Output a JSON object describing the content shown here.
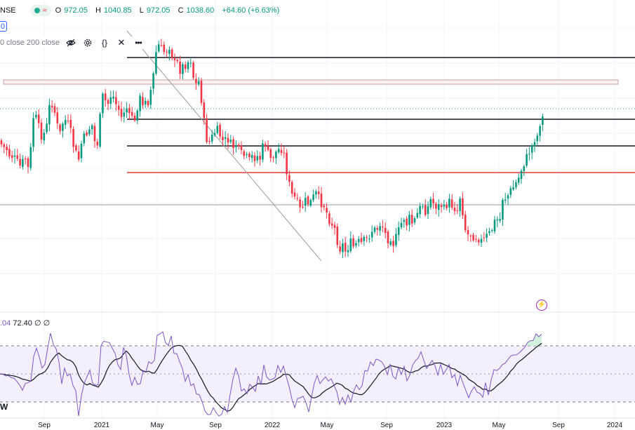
{
  "header": {
    "symbol": "NSE",
    "status_icon": "market-status-icon",
    "ohlc": [
      {
        "key": "O",
        "value": "972.05"
      },
      {
        "key": "H",
        "value": "1040.85"
      },
      {
        "key": "L",
        "value": "972.05"
      },
      {
        "key": "C",
        "value": "1038.60"
      }
    ],
    "change": "+64.60 (+6.63%)"
  },
  "left_box_value": "0",
  "indicator_legend": {
    "label": "0 close 200 close",
    "icons": [
      "eye-off-icon",
      "settings-icon",
      "source-code-icon",
      "remove-icon",
      "more-icon"
    ]
  },
  "rsi_legend": {
    "partial": ".04",
    "value": "72.40",
    "ext1": "∅",
    "ext2": "∅"
  },
  "interval_label": "W",
  "x_axis_labels": [
    "Sep",
    "2021",
    "May",
    "Sep",
    "2022",
    "May",
    "Sep",
    "2023",
    "May",
    "Sep",
    "2024"
  ],
  "colors": {
    "up": "#089981",
    "down": "#f23645",
    "rsi": "#7e57c2",
    "rsi_ma": "#131722",
    "support_red": "#e53935",
    "trendline": "#9e9e9e",
    "zone_border": "#c8a0a0",
    "zone_fill": "#fdf2f2"
  },
  "chart_data": {
    "type": "candlestick",
    "timeframe": "W",
    "price_close_points": [
      [
        0,
        200
      ],
      [
        4,
        212
      ],
      [
        8,
        208
      ],
      [
        12,
        220
      ],
      [
        16,
        222
      ],
      [
        20,
        225
      ],
      [
        24,
        230
      ],
      [
        28,
        238
      ],
      [
        32,
        232
      ],
      [
        36,
        225
      ],
      [
        40,
        240
      ],
      [
        44,
        212
      ],
      [
        48,
        162
      ],
      [
        52,
        170
      ],
      [
        56,
        185
      ],
      [
        60,
        195
      ],
      [
        64,
        188
      ],
      [
        68,
        175
      ],
      [
        72,
        138
      ],
      [
        76,
        155
      ],
      [
        80,
        165
      ],
      [
        84,
        198
      ],
      [
        88,
        178
      ],
      [
        92,
        170
      ],
      [
        96,
        175
      ],
      [
        100,
        185
      ],
      [
        104,
        205
      ],
      [
        108,
        218
      ],
      [
        112,
        228
      ],
      [
        116,
        205
      ],
      [
        120,
        196
      ],
      [
        124,
        188
      ],
      [
        128,
        182
      ],
      [
        132,
        178
      ],
      [
        136,
        210
      ],
      [
        140,
        202
      ],
      [
        144,
        150
      ],
      [
        148,
        130
      ],
      [
        152,
        155
      ],
      [
        156,
        140
      ],
      [
        160,
        132
      ],
      [
        164,
        148
      ],
      [
        168,
        150
      ],
      [
        172,
        170
      ],
      [
        176,
        160
      ],
      [
        180,
        152
      ],
      [
        184,
        168
      ],
      [
        188,
        162
      ],
      [
        192,
        176
      ],
      [
        196,
        150
      ],
      [
        200,
        140
      ],
      [
        204,
        155
      ],
      [
        208,
        135
      ],
      [
        212,
        148
      ],
      [
        216,
        120
      ],
      [
        220,
        100
      ],
      [
        224,
        58
      ],
      [
        228,
        70
      ],
      [
        232,
        70
      ],
      [
        236,
        78
      ],
      [
        240,
        62
      ],
      [
        244,
        72
      ],
      [
        248,
        92
      ],
      [
        252,
        88
      ],
      [
        256,
        100
      ],
      [
        260,
        95
      ],
      [
        264,
        92
      ],
      [
        268,
        88
      ],
      [
        272,
        85
      ],
      [
        276,
        112
      ],
      [
        280,
        122
      ],
      [
        284,
        115
      ],
      [
        288,
        150
      ],
      [
        292,
        185
      ],
      [
        296,
        205
      ],
      [
        300,
        200
      ],
      [
        304,
        192
      ],
      [
        308,
        185
      ],
      [
        312,
        188
      ],
      [
        316,
        200
      ],
      [
        320,
        202
      ],
      [
        324,
        196
      ],
      [
        328,
        205
      ],
      [
        332,
        210
      ],
      [
        336,
        205
      ],
      [
        340,
        215
      ],
      [
        344,
        220
      ],
      [
        348,
        222
      ],
      [
        352,
        226
      ],
      [
        356,
        230
      ],
      [
        360,
        222
      ],
      [
        364,
        225
      ],
      [
        368,
        222
      ],
      [
        372,
        228
      ],
      [
        376,
        198
      ],
      [
        380,
        210
      ],
      [
        384,
        228
      ],
      [
        388,
        225
      ],
      [
        392,
        218
      ],
      [
        396,
        215
      ],
      [
        400,
        210
      ],
      [
        404,
        216
      ],
      [
        408,
        240
      ],
      [
        412,
        262
      ],
      [
        416,
        278
      ],
      [
        420,
        282
      ],
      [
        424,
        290
      ],
      [
        428,
        300
      ],
      [
        432,
        292
      ],
      [
        436,
        286
      ],
      [
        440,
        290
      ],
      [
        444,
        287
      ],
      [
        448,
        278
      ],
      [
        452,
        275
      ],
      [
        456,
        290
      ],
      [
        460,
        288
      ],
      [
        464,
        298
      ],
      [
        468,
        310
      ],
      [
        472,
        318
      ],
      [
        476,
        322
      ],
      [
        480,
        340
      ],
      [
        484,
        355
      ],
      [
        488,
        348
      ],
      [
        492,
        358
      ],
      [
        496,
        352
      ],
      [
        500,
        346
      ],
      [
        504,
        352
      ],
      [
        508,
        348
      ],
      [
        512,
        345
      ],
      [
        516,
        348
      ],
      [
        520,
        342
      ],
      [
        524,
        340
      ],
      [
        528,
        332
      ],
      [
        532,
        326
      ],
      [
        536,
        330
      ],
      [
        540,
        320
      ],
      [
        544,
        318
      ],
      [
        548,
        330
      ],
      [
        552,
        342
      ],
      [
        556,
        335
      ],
      [
        560,
        348
      ],
      [
        564,
        340
      ],
      [
        568,
        330
      ],
      [
        572,
        318
      ],
      [
        576,
        310
      ],
      [
        580,
        320
      ],
      [
        584,
        310
      ],
      [
        588,
        320
      ],
      [
        592,
        312
      ],
      [
        596,
        302
      ],
      [
        600,
        295
      ],
      [
        604,
        290
      ],
      [
        608,
        308
      ],
      [
        612,
        282
      ],
      [
        616,
        288
      ],
      [
        620,
        292
      ],
      [
        624,
        296
      ],
      [
        628,
        290
      ],
      [
        632,
        300
      ],
      [
        636,
        292
      ],
      [
        640,
        288
      ],
      [
        644,
        292
      ],
      [
        648,
        296
      ],
      [
        652,
        300
      ],
      [
        656,
        278
      ],
      [
        660,
        305
      ],
      [
        664,
        332
      ],
      [
        668,
        335
      ],
      [
        672,
        332
      ],
      [
        676,
        338
      ],
      [
        680,
        336
      ],
      [
        684,
        342
      ],
      [
        688,
        345
      ],
      [
        692,
        338
      ],
      [
        696,
        335
      ],
      [
        700,
        330
      ],
      [
        704,
        318
      ],
      [
        708,
        312
      ],
      [
        712,
        318
      ],
      [
        716,
        282
      ],
      [
        720,
        282
      ],
      [
        724,
        278
      ],
      [
        728,
        272
      ],
      [
        732,
        266
      ],
      [
        736,
        260
      ],
      [
        740,
        252
      ],
      [
        744,
        238
      ],
      [
        748,
        230
      ],
      [
        752,
        222
      ],
      [
        756,
        212
      ],
      [
        760,
        205
      ],
      [
        764,
        200
      ],
      [
        768,
        185
      ],
      [
        772,
        172
      ],
      [
        776,
        155
      ]
    ],
    "horizontal_levels": [
      {
        "name": "resistance-1",
        "price_y": 82,
        "color": "#131722"
      },
      {
        "name": "zone",
        "price_y": 117,
        "color": "#c8a0a0"
      },
      {
        "name": "resistance-2",
        "price_y": 170,
        "color": "#131722"
      },
      {
        "name": "resistance-3",
        "price_y": 208,
        "color": "#131722"
      },
      {
        "name": "support-red",
        "price_y": 246,
        "color": "#e53935"
      },
      {
        "name": "reference",
        "price_y": 292,
        "color": "#9e9e9e"
      }
    ],
    "rsi_bands": {
      "upper": 70,
      "middle": 50,
      "lower": 30
    },
    "rsi_last": 72.4
  }
}
